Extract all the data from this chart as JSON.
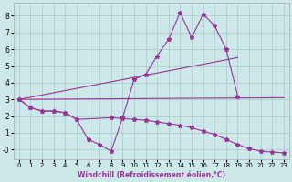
{
  "xlabel": "Windchill (Refroidissement éolien,°C)",
  "bg_color": "#cce8e8",
  "line_color": "#993399",
  "xlim": [
    -0.5,
    23.5
  ],
  "ylim": [
    -0.6,
    8.8
  ],
  "ytick_vals": [
    0,
    1,
    2,
    3,
    4,
    5,
    6,
    7,
    8
  ],
  "ytick_labels": [
    "-0",
    "1",
    "2",
    "3",
    "4",
    "5",
    "6",
    "7",
    "8"
  ],
  "xticks": [
    0,
    1,
    2,
    3,
    4,
    5,
    6,
    7,
    8,
    9,
    10,
    11,
    12,
    13,
    14,
    15,
    16,
    17,
    18,
    19,
    20,
    21,
    22,
    23
  ],
  "line1_x": [
    0,
    1,
    2,
    3,
    4,
    5,
    6,
    7,
    8,
    9,
    10,
    11,
    12,
    13,
    14,
    15,
    16,
    17,
    18,
    19
  ],
  "line1_y": [
    3.0,
    2.5,
    2.3,
    2.3,
    2.2,
    1.8,
    0.6,
    0.3,
    -0.1,
    1.9,
    4.2,
    4.5,
    5.6,
    6.6,
    8.2,
    6.7,
    8.1,
    7.4,
    6.0,
    3.2
  ],
  "line2_x": [
    0,
    19
  ],
  "line2_y": [
    3.0,
    5.5
  ],
  "line3_x": [
    0,
    23
  ],
  "line3_y": [
    3.0,
    3.1
  ],
  "line4_x": [
    0,
    1,
    2,
    3,
    4,
    5,
    8,
    9,
    10,
    11,
    12,
    13,
    14,
    15,
    16,
    17,
    18,
    19,
    20,
    21,
    22,
    23
  ],
  "line4_y": [
    3.0,
    2.5,
    2.3,
    2.3,
    2.2,
    1.8,
    1.9,
    1.85,
    1.8,
    1.75,
    1.65,
    1.55,
    1.45,
    1.3,
    1.1,
    0.9,
    0.6,
    0.3,
    0.05,
    -0.1,
    -0.15,
    -0.2
  ]
}
